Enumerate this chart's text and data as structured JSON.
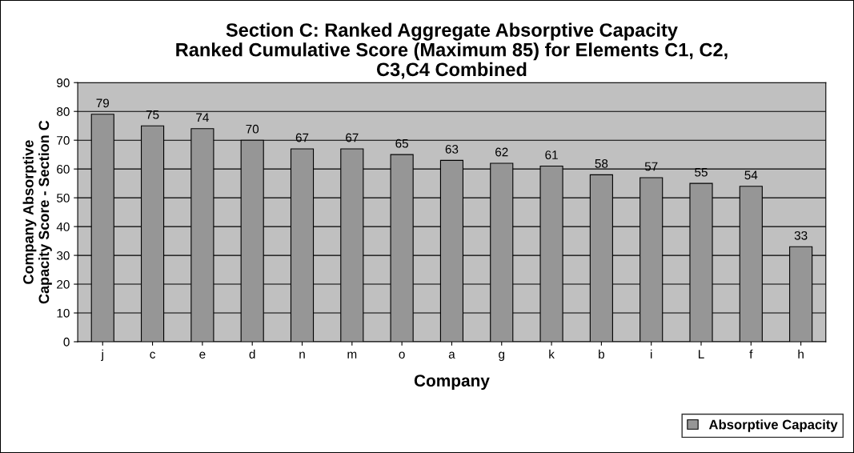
{
  "chart_data": {
    "type": "bar",
    "title": "Section C: Ranked Aggregate Absorptive Capacity\nRanked Cumulative Score (Maximum 85) for Elements C1, C2,\nC3,C4 Combined",
    "xlabel": "Company",
    "ylabel": "Company Absorptive\nCapacity Score - Section C",
    "categories": [
      "j",
      "c",
      "e",
      "d",
      "n",
      "m",
      "o",
      "a",
      "g",
      "k",
      "b",
      "i",
      "L",
      "f",
      "h"
    ],
    "series": [
      {
        "name": "Absorptive Capacity",
        "color": "#969696",
        "values": [
          79,
          75,
          74,
          70,
          67,
          67,
          65,
          63,
          62,
          61,
          58,
          57,
          55,
          54,
          33
        ]
      }
    ],
    "ylim": [
      0,
      90
    ],
    "yticks": [
      0,
      10,
      20,
      30,
      40,
      50,
      60,
      70,
      80,
      90
    ],
    "grid": "y",
    "legend": "bottom right",
    "data_labels": true
  }
}
